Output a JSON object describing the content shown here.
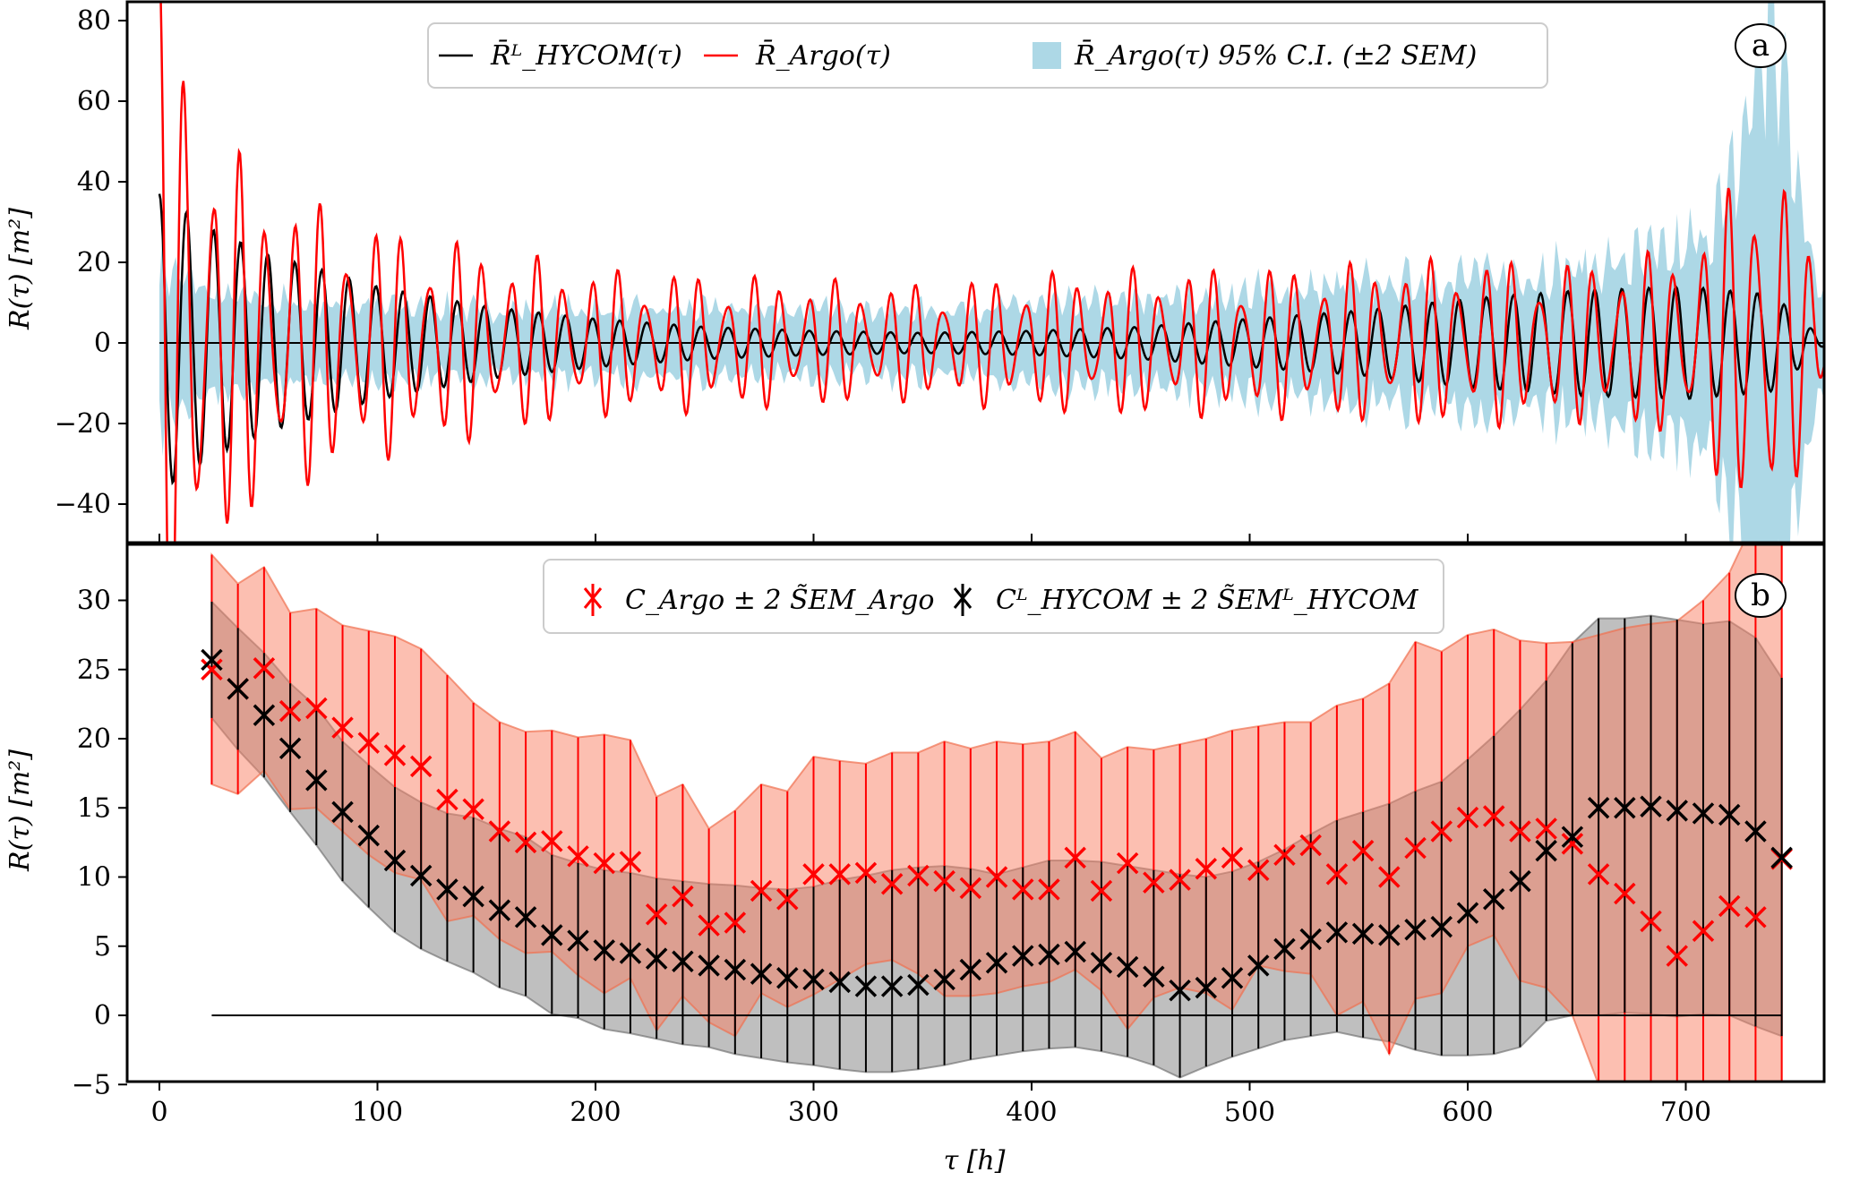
{
  "chart_data": [
    {
      "panel": "a",
      "type": "line",
      "panel_tag": "a",
      "ylabel": "R(τ) [m²]",
      "xlabel": "",
      "xlim": [
        -15,
        770
      ],
      "ylim": [
        -50,
        85
      ],
      "xticks": [
        0,
        100,
        200,
        300,
        400,
        500,
        600,
        700
      ],
      "yticks": [
        -40,
        -20,
        0,
        20,
        40,
        60,
        80
      ],
      "ytick_labels": [
        "−40",
        "−20",
        "0",
        "20",
        "40",
        "60",
        "80"
      ],
      "grid": false,
      "legend": {
        "placement": "top-center",
        "entries": [
          {
            "label": "R̄ᴸ_HYCOM(τ)",
            "kind": "line",
            "color": "#000000"
          },
          {
            "label": "R̄_Argo(τ)",
            "kind": "line",
            "color": "#ff0000"
          },
          {
            "label": "R̄_Argo(τ) 95% C.I. (±2 SEM)",
            "kind": "patch",
            "color": "#add8e6"
          }
        ]
      },
      "series": [
        {
          "name": "R̄ᴸ_HYCOM(τ)",
          "color": "#000000",
          "description": "semidiurnal oscillation (~12.4 h period), amplitude decaying from ~38 at τ=0 to ~3 near τ=350, growing back to ~14 near τ=700",
          "envelope_x": [
            0,
            25,
            50,
            100,
            150,
            200,
            250,
            300,
            350,
            400,
            450,
            500,
            550,
            600,
            650,
            700,
            740,
            765
          ],
          "envelope_amp": [
            37,
            28,
            22,
            14,
            9,
            6,
            4,
            3,
            2.5,
            3,
            4,
            6,
            8,
            11,
            13,
            14,
            12,
            0
          ],
          "period_h": 12.42
        },
        {
          "name": "R̄_Argo(τ)",
          "color": "#ff0000",
          "description": "noisier semidiurnal oscillation; peak ~79 at τ≈1, minimum ~−45 at τ≈5, large excursions near τ>720",
          "envelope_x": [
            0,
            25,
            50,
            100,
            150,
            200,
            250,
            300,
            350,
            400,
            450,
            500,
            550,
            600,
            650,
            700,
            740,
            765
          ],
          "envelope_amp": [
            75,
            40,
            30,
            22,
            18,
            14,
            13,
            12,
            11,
            13,
            14,
            14,
            15,
            16,
            15,
            18,
            40,
            5
          ],
          "period_h": 12.42
        },
        {
          "name": "R̄_Argo(τ) 95% C.I. (±2 SEM)",
          "color": "#add8e6",
          "kind": "band",
          "x": [
            0,
            25,
            50,
            100,
            150,
            200,
            250,
            300,
            350,
            400,
            450,
            500,
            550,
            600,
            650,
            700,
            720,
            740,
            750,
            765
          ],
          "half_width": [
            19,
            12,
            10,
            9,
            8,
            8,
            8,
            8,
            8,
            9,
            10,
            12,
            14,
            16,
            18,
            22,
            35,
            85,
            40,
            8
          ]
        },
        {
          "name": "zero line",
          "color": "#000000",
          "kind": "hline",
          "y": 0,
          "x_range": [
            0,
            765
          ]
        }
      ]
    },
    {
      "panel": "b",
      "type": "scatter",
      "panel_tag": "b",
      "ylabel": "R(τ) [m²]",
      "xlabel": "τ [h]",
      "xlim": [
        -15,
        770
      ],
      "ylim": [
        -5,
        34
      ],
      "xticks": [
        0,
        100,
        200,
        300,
        400,
        500,
        600,
        700
      ],
      "xtick_labels": [
        "0",
        "100",
        "200",
        "300",
        "400",
        "500",
        "600",
        "700"
      ],
      "yticks": [
        -5,
        0,
        5,
        10,
        15,
        20,
        25,
        30
      ],
      "ytick_labels": [
        "−5",
        "0",
        "5",
        "10",
        "15",
        "20",
        "25",
        "30"
      ],
      "grid": false,
      "legend": {
        "placement": "top-center",
        "entries": [
          {
            "label": "C_Argo ± 2 S̃EM_Argo",
            "marker": "x",
            "color": "#ff0000"
          },
          {
            "label": "Cᴸ_HYCOM ± 2 S̃EMᴸ_HYCOM",
            "marker": "x",
            "color": "#000000"
          }
        ]
      },
      "x": [
        24,
        36,
        48,
        60,
        72,
        84,
        96,
        108,
        120,
        132,
        144,
        156,
        168,
        180,
        192,
        204,
        216,
        228,
        240,
        252,
        264,
        276,
        288,
        300,
        312,
        324,
        336,
        348,
        360,
        372,
        384,
        396,
        408,
        420,
        432,
        444,
        456,
        468,
        480,
        492,
        504,
        516,
        528,
        540,
        552,
        564,
        576,
        588,
        600,
        612,
        624,
        636,
        648,
        660,
        672,
        684,
        696,
        708,
        720,
        732,
        744
      ],
      "series": [
        {
          "name": "C_Argo",
          "color": "#ff0000",
          "band_color": "#fa8064",
          "values": [
            25.0,
            23.6,
            25.1,
            22.0,
            22.2,
            20.8,
            19.7,
            18.8,
            18.0,
            15.6,
            14.9,
            13.3,
            12.5,
            12.6,
            11.5,
            11.0,
            11.1,
            7.3,
            8.6,
            6.5,
            6.7,
            9.0,
            8.4,
            10.2,
            10.2,
            10.3,
            9.5,
            10.1,
            9.7,
            9.2,
            10.0,
            9.1,
            9.1,
            11.4,
            9.0,
            11.0,
            9.6,
            9.8,
            10.6,
            11.4,
            10.5,
            11.6,
            12.3,
            10.2,
            11.9,
            10.0,
            12.1,
            13.3,
            14.3,
            14.4,
            13.3,
            13.5,
            12.4,
            10.2,
            8.8,
            6.8,
            4.3,
            6.1,
            7.9,
            7.1,
            11.3
          ],
          "upper": [
            33.3,
            31.2,
            32.4,
            29.1,
            29.4,
            28.2,
            27.8,
            27.4,
            26.5,
            24.6,
            22.6,
            21.2,
            20.5,
            20.6,
            20.1,
            20.3,
            19.9,
            15.8,
            16.7,
            13.5,
            14.8,
            16.7,
            16.2,
            18.7,
            18.4,
            18.2,
            19.0,
            19.0,
            19.8,
            19.3,
            19.8,
            19.6,
            19.8,
            20.5,
            18.6,
            19.4,
            19.2,
            19.6,
            20.0,
            20.6,
            20.9,
            21.2,
            21.2,
            22.4,
            22.9,
            24.0,
            27.0,
            26.3,
            27.5,
            27.9,
            27.1,
            26.9,
            27.0,
            27.5,
            28.0,
            28.3,
            28.5,
            30.0,
            32.0,
            36.0,
            40.0
          ],
          "lower": [
            16.7,
            16.0,
            17.7,
            14.9,
            15.0,
            13.3,
            11.6,
            10.3,
            9.8,
            6.8,
            7.2,
            5.5,
            4.5,
            4.6,
            2.9,
            1.6,
            2.7,
            -1.1,
            1.4,
            -0.5,
            -1.5,
            1.6,
            0.6,
            1.5,
            2.6,
            3.7,
            4.0,
            3.0,
            1.4,
            1.4,
            1.6,
            2.1,
            2.4,
            3.3,
            1.8,
            -1.0,
            1.3,
            2.0,
            1.6,
            0.4,
            3.6,
            3.2,
            3.0,
            0.0,
            1.0,
            -2.8,
            1.2,
            1.6,
            5.0,
            5.8,
            2.5,
            2.0,
            0.0,
            -5.0,
            -5.0,
            -5.0,
            -5.0,
            -5.0,
            -5.0,
            -5.0,
            -5.0
          ]
        },
        {
          "name": "C^L_HYCOM",
          "color": "#000000",
          "band_color": "#808080",
          "values": [
            25.7,
            23.6,
            21.7,
            19.3,
            17.0,
            14.7,
            13.0,
            11.2,
            10.1,
            9.1,
            8.6,
            7.6,
            7.1,
            5.8,
            5.4,
            4.7,
            4.5,
            4.1,
            3.9,
            3.6,
            3.3,
            3.0,
            2.7,
            2.6,
            2.4,
            2.1,
            2.1,
            2.2,
            2.6,
            3.3,
            3.8,
            4.3,
            4.4,
            4.6,
            3.8,
            3.5,
            2.8,
            1.8,
            2.0,
            2.7,
            3.6,
            4.8,
            5.5,
            6.0,
            5.9,
            5.8,
            6.2,
            6.4,
            7.4,
            8.4,
            9.7,
            11.9,
            12.9,
            15.0,
            15.0,
            15.1,
            14.8,
            14.6,
            14.5,
            13.3,
            11.4
          ],
          "upper": [
            29.9,
            28.0,
            26.2,
            24.0,
            22.3,
            19.8,
            18.1,
            16.5,
            15.4,
            14.6,
            14.3,
            13.5,
            12.9,
            11.6,
            11.0,
            10.5,
            10.3,
            9.9,
            9.7,
            9.5,
            9.4,
            9.2,
            9.1,
            9.3,
            9.8,
            10.1,
            10.5,
            10.7,
            10.8,
            10.6,
            10.2,
            10.7,
            11.2,
            11.2,
            11.1,
            10.8,
            10.5,
            10.2,
            10.0,
            10.4,
            11.1,
            12.0,
            13.1,
            14.1,
            14.7,
            15.3,
            16.2,
            16.9,
            18.5,
            20.2,
            22.1,
            24.2,
            26.9,
            28.7,
            28.7,
            28.9,
            28.6,
            28.3,
            28.5,
            27.3,
            24.4
          ],
          "lower": [
            21.5,
            19.2,
            17.2,
            14.7,
            12.3,
            9.7,
            7.8,
            6.0,
            4.8,
            3.9,
            3.1,
            2.0,
            1.4,
            0.1,
            -0.2,
            -1.0,
            -1.3,
            -1.7,
            -2.1,
            -2.3,
            -2.8,
            -3.1,
            -3.4,
            -3.6,
            -3.9,
            -4.1,
            -4.1,
            -3.9,
            -3.6,
            -3.2,
            -2.9,
            -2.6,
            -2.4,
            -2.3,
            -2.6,
            -3.0,
            -3.6,
            -4.5,
            -3.7,
            -3.0,
            -2.4,
            -1.8,
            -1.5,
            -1.2,
            -1.6,
            -1.9,
            -2.5,
            -2.9,
            -2.9,
            -2.8,
            -2.3,
            -0.4,
            0.0,
            0.0,
            0.2,
            0.1,
            -0.1,
            0.1,
            0.0,
            -0.8,
            -1.5
          ]
        },
        {
          "name": "zero line",
          "color": "#000000",
          "kind": "hline",
          "y": 0,
          "x_range": [
            24,
            744
          ]
        }
      ]
    }
  ]
}
